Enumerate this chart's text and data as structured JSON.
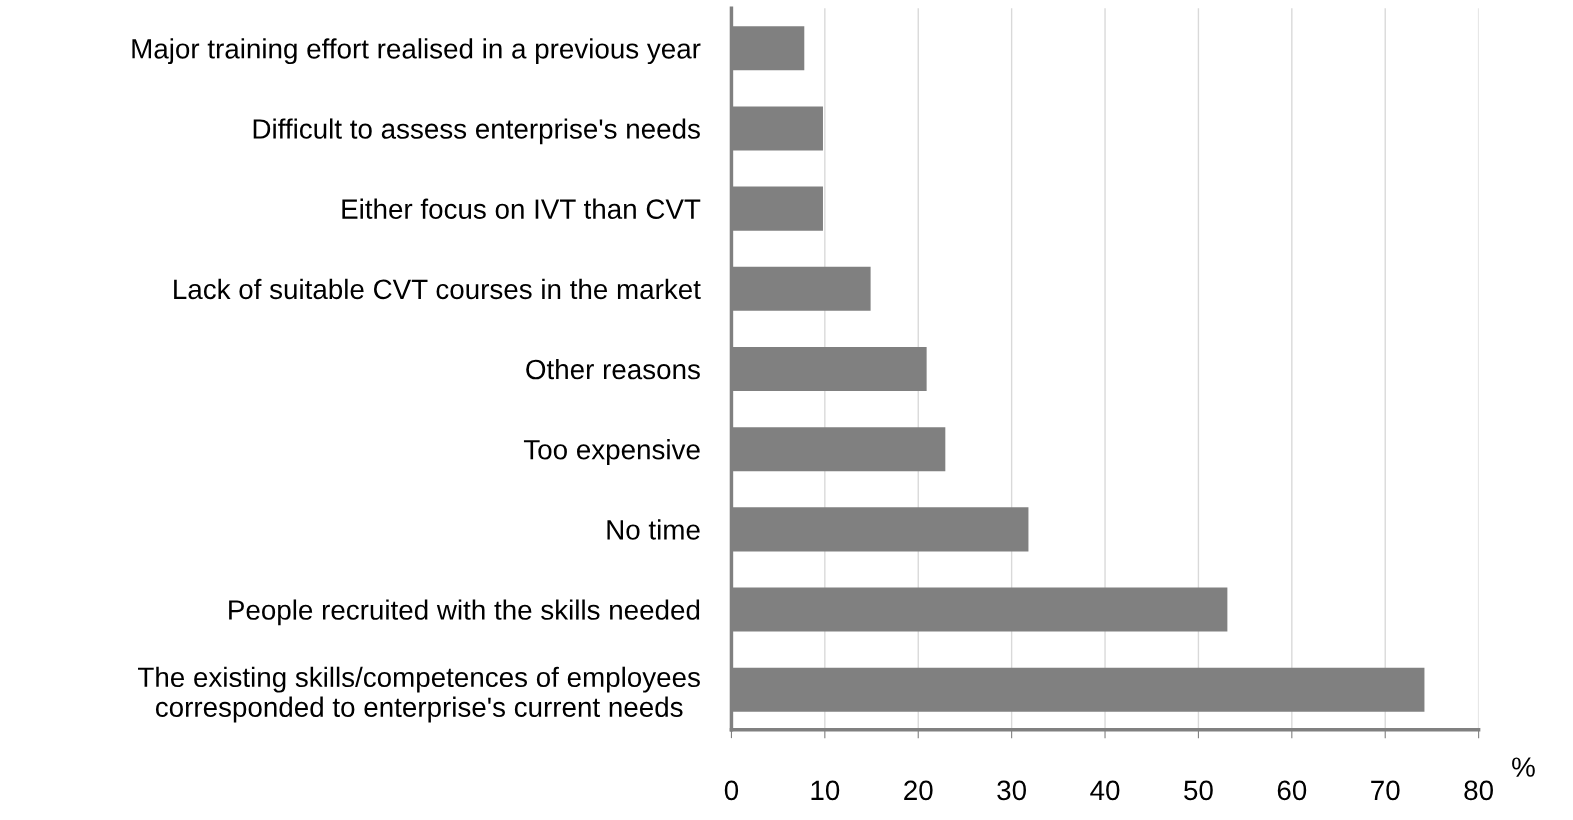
{
  "chart_data": {
    "type": "bar",
    "orientation": "horizontal",
    "xlabel": "%",
    "categories": [
      "Major training effort realised in a previous year",
      "Difficult to assess enterprise's needs",
      "Either focus on IVT than CVT",
      "Lack of suitable CVT courses in the market",
      "Other reasons",
      "Too expensive",
      "No time",
      "People recruited with the skills needed",
      "The existing skills/competences of employees\ncorresponded to enterprise's current needs"
    ],
    "values": [
      7.8,
      9.8,
      9.8,
      14.9,
      20.9,
      22.9,
      31.8,
      53.1,
      74.2
    ],
    "color": "#808080",
    "xlim": [
      0,
      80
    ],
    "xticks": [
      0,
      10,
      20,
      30,
      40,
      50,
      60,
      70,
      80
    ],
    "grid": "x",
    "legend": false
  }
}
